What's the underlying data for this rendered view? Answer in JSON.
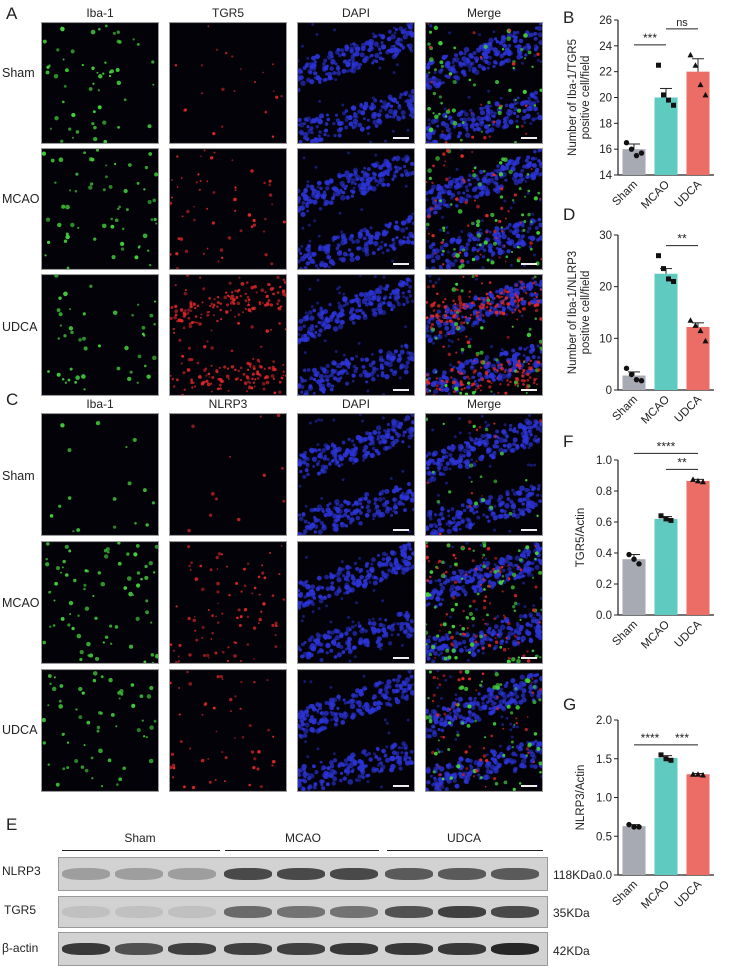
{
  "panels": {
    "A": {
      "letter": "A",
      "columns": [
        "Iba-1",
        "TGR5",
        "DAPI",
        "Merge"
      ],
      "rows": [
        "Sham",
        "MCAO",
        "UDCA"
      ]
    },
    "C": {
      "letter": "C",
      "columns": [
        "Iba-1",
        "NLRP3",
        "DAPI",
        "Merge"
      ],
      "rows": [
        "Sham",
        "MCAO",
        "UDCA"
      ]
    },
    "E": {
      "letter": "E",
      "groups": [
        "Sham",
        "MCAO",
        "UDCA"
      ],
      "rows": [
        {
          "protein": "NLRP3",
          "size": "118KDa",
          "intensity": [
            0.25,
            0.25,
            0.25,
            0.75,
            0.75,
            0.75,
            0.65,
            0.65,
            0.65
          ]
        },
        {
          "protein": "TGR5",
          "size": "35KDa",
          "intensity": [
            0.05,
            0.05,
            0.05,
            0.55,
            0.5,
            0.5,
            0.7,
            0.8,
            0.75
          ]
        },
        {
          "protein": "β-actin",
          "size": "42KDa",
          "intensity": [
            0.85,
            0.7,
            0.8,
            0.8,
            0.8,
            0.85,
            0.85,
            0.85,
            0.95
          ]
        }
      ]
    }
  },
  "colors": {
    "sham": "#a7a9b3",
    "mcao": "#5fcac0",
    "udca": "#ec6d66",
    "green_signal": "#43d13c",
    "red_signal": "#e0282a",
    "blue_signal": "#2c34d6"
  },
  "chart_data": [
    {
      "panel": "B",
      "type": "bar",
      "categories": [
        "Sham",
        "MCAO",
        "UDCA"
      ],
      "values": [
        16,
        20,
        22
      ],
      "errors": [
        0.4,
        0.7,
        1.0
      ],
      "points": [
        [
          16.5,
          16.0,
          15.5,
          15.7
        ],
        [
          22.5,
          20.2,
          19.8,
          19.4
        ],
        [
          23.3,
          22.5,
          21.0,
          20.2
        ]
      ],
      "ylabel": "Number of Iba-1/TGR5 positive cell/field",
      "ylim": [
        14,
        26
      ],
      "yticks": [
        14,
        16,
        18,
        20,
        22,
        24,
        26
      ],
      "significance": [
        {
          "from": 0,
          "to": 1,
          "label": "***",
          "level": 0
        },
        {
          "from": 1,
          "to": 2,
          "label": "ns",
          "level": 1
        }
      ]
    },
    {
      "panel": "D",
      "type": "bar",
      "categories": [
        "Sham",
        "MCAO",
        "UDCA"
      ],
      "values": [
        2.8,
        22.5,
        12.2
      ],
      "errors": [
        0.7,
        1.0,
        0.8
      ],
      "points": [
        [
          4.2,
          3.0,
          2.0,
          1.8
        ],
        [
          26.0,
          23.5,
          21.5,
          21.0
        ],
        [
          13.5,
          12.5,
          11.5,
          9.5
        ]
      ],
      "ylabel": "Number of Iba-1/NLRP3 positive cell/field",
      "ylim": [
        0,
        30
      ],
      "yticks": [
        0,
        10,
        20,
        30
      ],
      "significance": [
        {
          "from": 1,
          "to": 2,
          "label": "**",
          "level": 0
        }
      ]
    },
    {
      "panel": "F",
      "type": "bar",
      "categories": [
        "Sham",
        "MCAO",
        "UDCA"
      ],
      "values": [
        0.36,
        0.62,
        0.865
      ],
      "errors": [
        0.03,
        0.015,
        0.01
      ],
      "points": [
        [
          0.39,
          0.36,
          0.33
        ],
        [
          0.64,
          0.62,
          0.61
        ],
        [
          0.875,
          0.865,
          0.86
        ]
      ],
      "ylabel": "TGR5/Actin",
      "ylim": [
        0,
        1.0
      ],
      "yticks": [
        "0.0",
        "0.2",
        "0.4",
        "0.6",
        "0.8",
        "1.0"
      ],
      "significance": [
        {
          "from": 0,
          "to": 2,
          "label": "****",
          "level": 1
        },
        {
          "from": 1,
          "to": 2,
          "label": "**",
          "level": 0
        }
      ]
    },
    {
      "panel": "G",
      "type": "bar",
      "categories": [
        "Sham",
        "MCAO",
        "UDCA"
      ],
      "values": [
        0.63,
        1.51,
        1.3
      ],
      "errors": [
        0.02,
        0.03,
        0.01
      ],
      "points": [
        [
          0.65,
          0.62,
          0.62
        ],
        [
          1.55,
          1.5,
          1.48
        ],
        [
          1.3,
          1.3,
          1.29
        ]
      ],
      "ylabel": "NLRP3/Actin",
      "ylim": [
        0,
        2.0
      ],
      "yticks": [
        "0.0",
        "0.5",
        "1.0",
        "1.5",
        "2.0"
      ],
      "significance": [
        {
          "from": 0,
          "to": 1,
          "label": "****",
          "level": 0
        },
        {
          "from": 1,
          "to": 2,
          "label": "***",
          "level": 0
        }
      ]
    }
  ]
}
